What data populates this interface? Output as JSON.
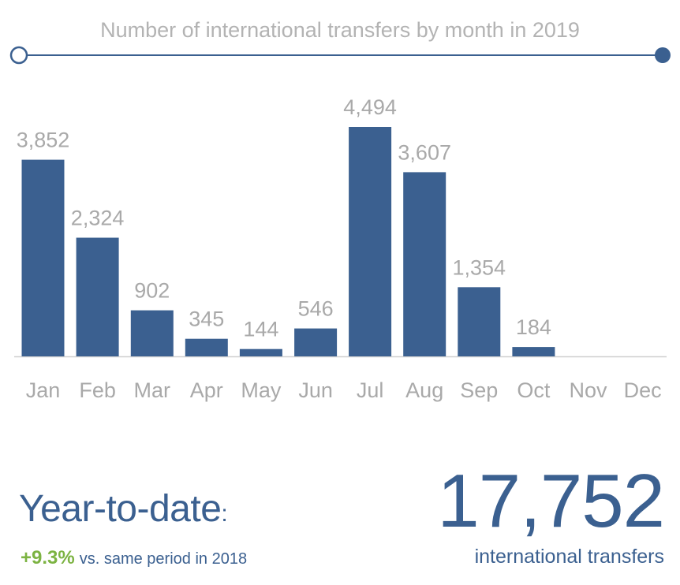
{
  "chart_data": {
    "type": "bar",
    "title": "Number of international transfers by month in 2019",
    "categories": [
      "Jan",
      "Feb",
      "Mar",
      "Apr",
      "May",
      "Jun",
      "Jul",
      "Aug",
      "Sep",
      "Oct",
      "Nov",
      "Dec"
    ],
    "values": [
      3852,
      2324,
      902,
      345,
      144,
      546,
      4494,
      3607,
      1354,
      184,
      null,
      null
    ],
    "value_labels": [
      "3,852",
      "2,324",
      "902",
      "345",
      "144",
      "546",
      "4,494",
      "3,607",
      "1,354",
      "184",
      "",
      ""
    ],
    "ylim": [
      0,
      4494
    ],
    "grid": false,
    "xlabel": "",
    "ylabel": ""
  },
  "colors": {
    "bar": "#3b6090",
    "accent_green": "#7cb342",
    "label_gray": "#a9a9a9"
  },
  "summary": {
    "ytd_label": "Year-to-date",
    "ytd_colon": ":",
    "change_pct": "+9.3%",
    "change_note": "vs. same period in 2018",
    "total": "17,752",
    "total_label": "international transfers"
  }
}
